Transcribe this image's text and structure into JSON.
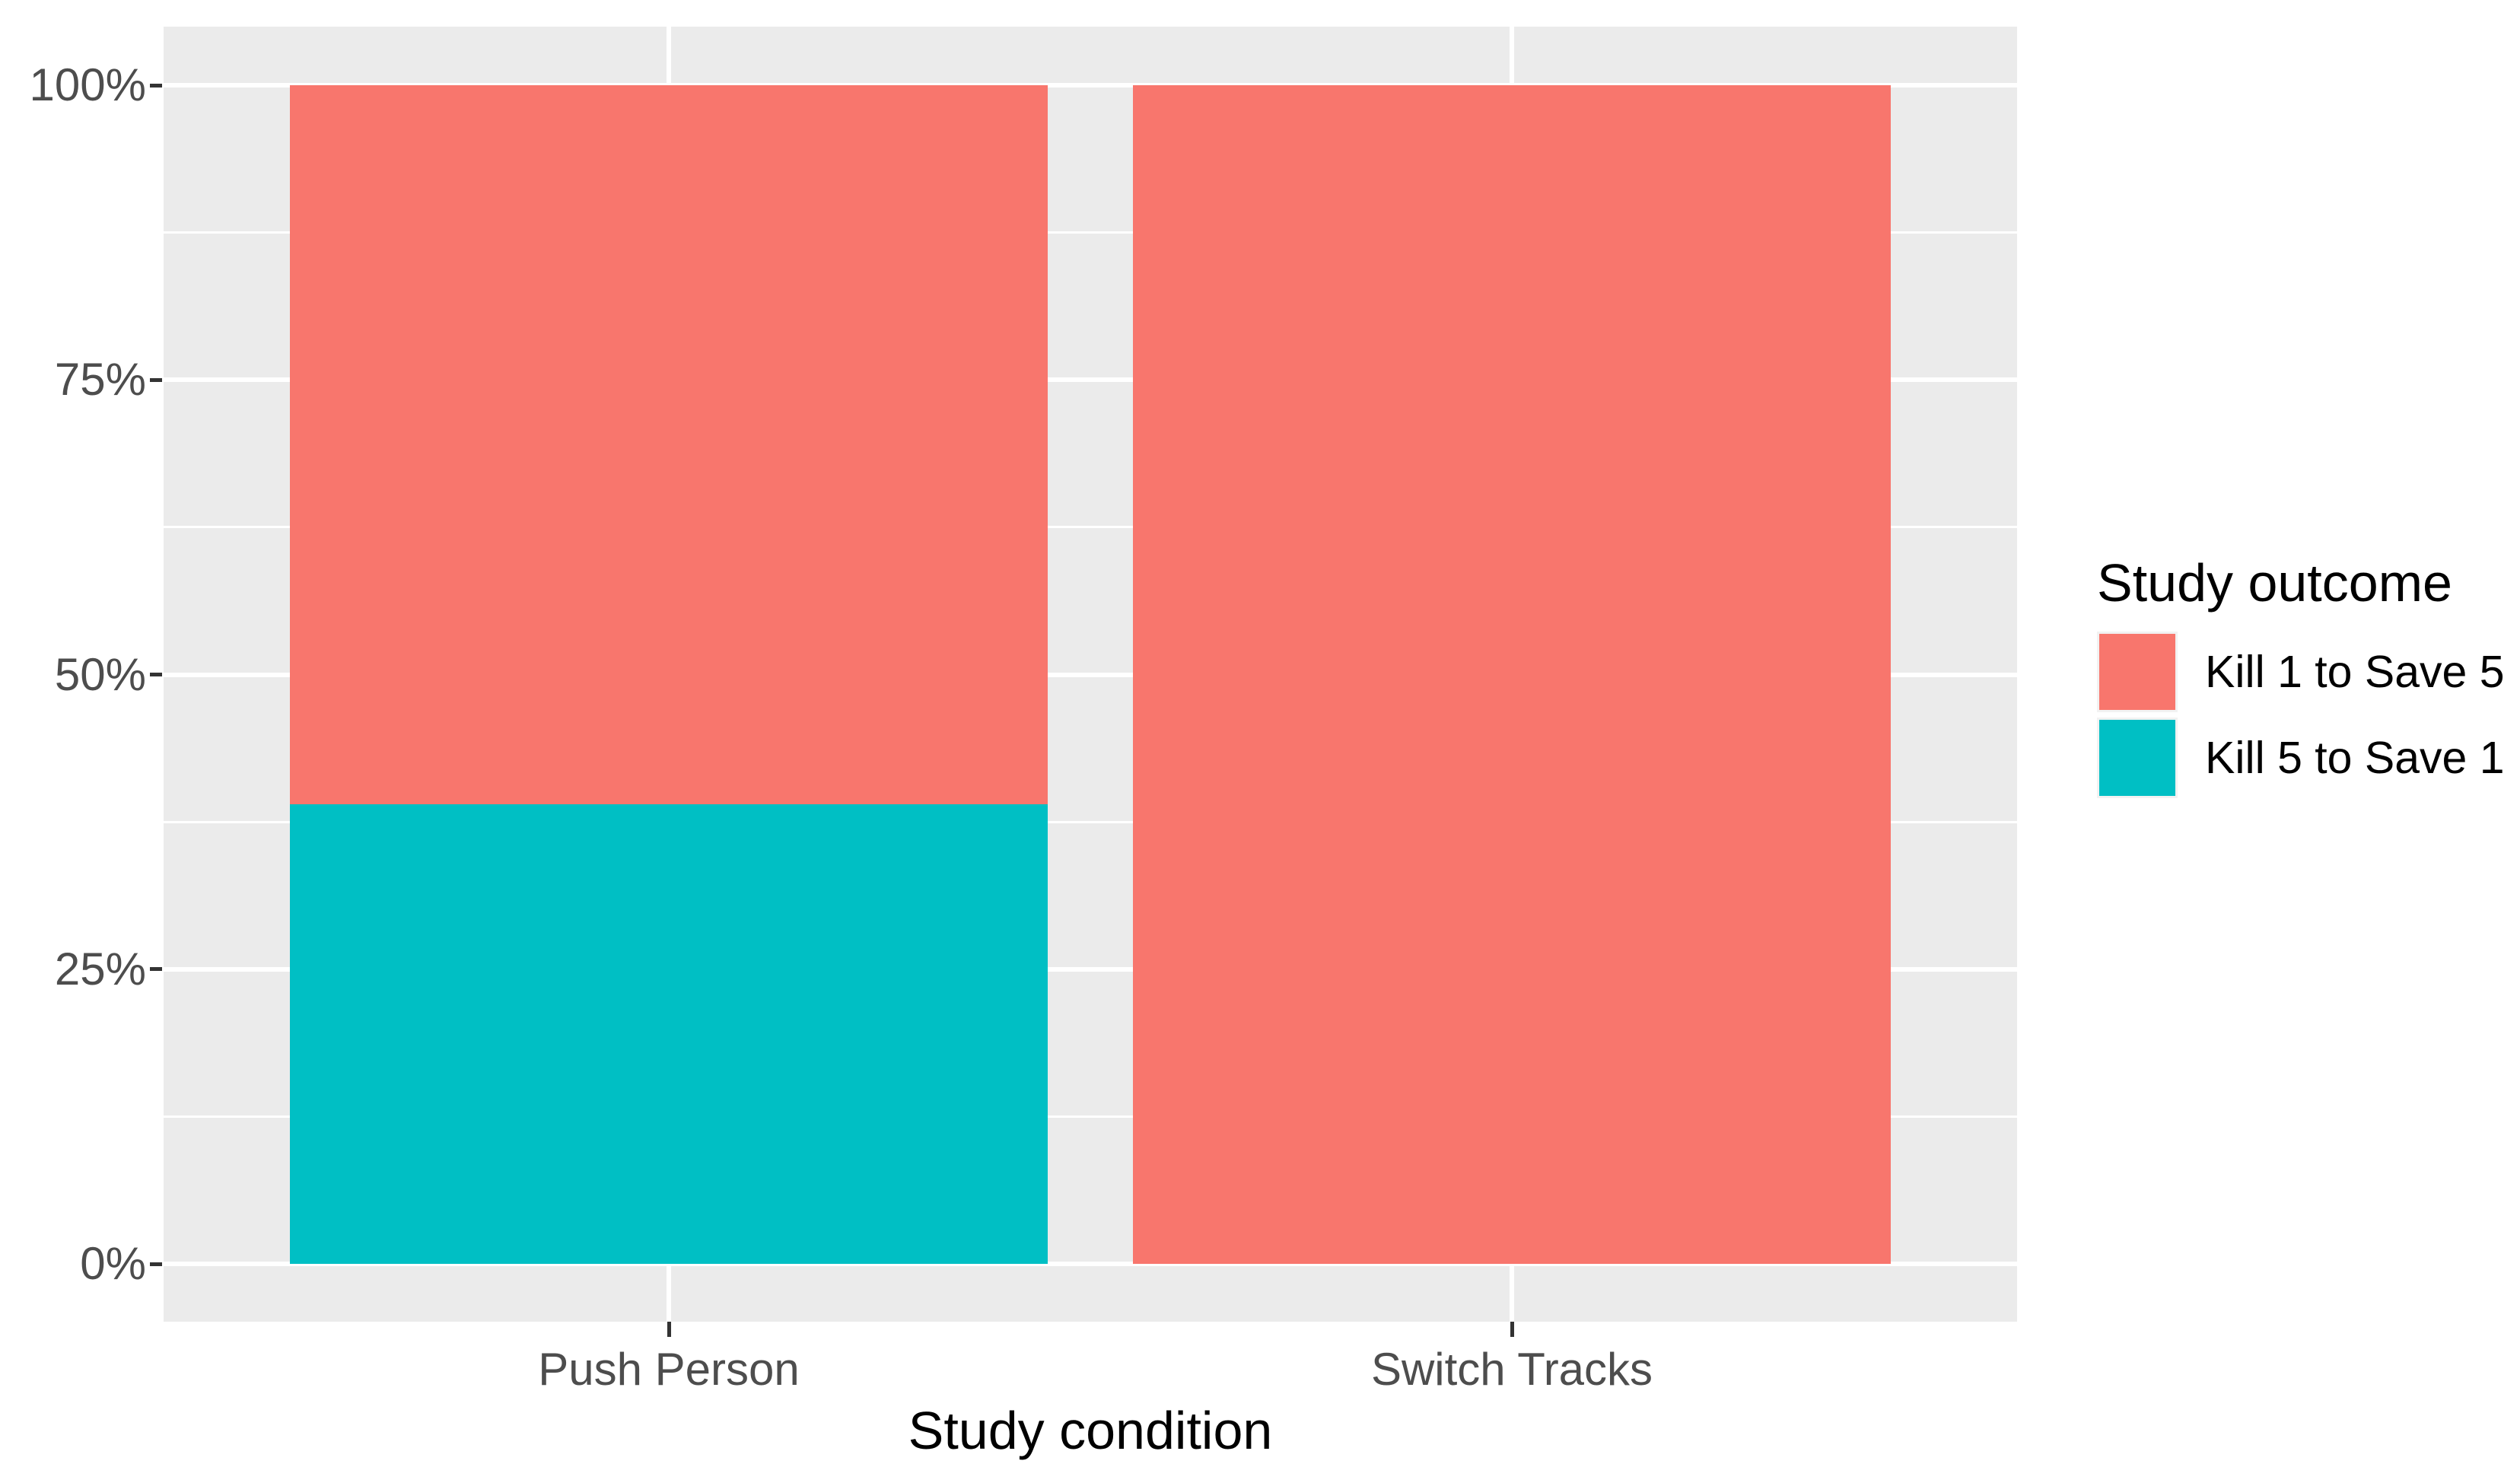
{
  "chart_data": {
    "type": "bar",
    "stacking": "percent",
    "orientation": "vertical",
    "title": "",
    "xlabel": "Study condition",
    "ylabel": "",
    "categories": [
      "Push Person",
      "Switch Tracks"
    ],
    "series": [
      {
        "name": "Kill 1 to Save 5",
        "color": "#F8766D",
        "values": [
          61,
          100
        ]
      },
      {
        "name": "Kill 5 to Save 1",
        "color": "#00BFC4",
        "values": [
          39,
          0
        ]
      }
    ],
    "y_axis": {
      "tick_labels": [
        "0%",
        "25%",
        "50%",
        "75%",
        "100%"
      ],
      "tick_values": [
        0,
        25,
        50,
        75,
        100
      ],
      "minor_tick_values": [
        12.5,
        37.5,
        62.5,
        87.5
      ],
      "range": [
        0,
        100
      ]
    },
    "legend": {
      "title": "Study outcome",
      "position": "right"
    },
    "style": {
      "panel_background": "#EBEBEB",
      "grid_color": "#FFFFFF",
      "tick_color": "#333333",
      "axis_text_color": "#4D4D4D",
      "title_color": "#000000",
      "legend_key_background": "#F2F2F2",
      "page_background": "#FFFFFF"
    }
  }
}
